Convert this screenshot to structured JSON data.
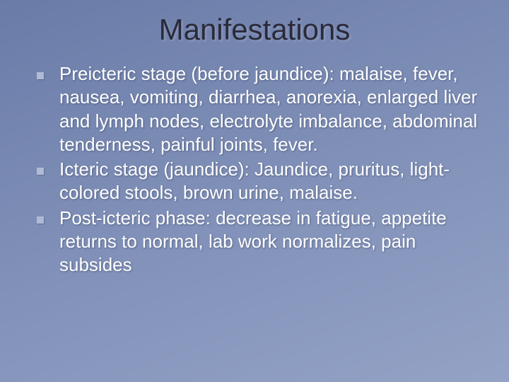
{
  "slide": {
    "title": "Manifestations",
    "title_color": "#2a2a3a",
    "title_fontsize": 42,
    "body_color": "#ffffff",
    "body_fontsize": 26,
    "background_gradient": {
      "angle": 160,
      "stops": [
        "#6a7ba8",
        "#7586b0",
        "#8090b8",
        "#8a99bf",
        "#94a2c5"
      ]
    },
    "bullet_marker_color": "#b0bad5",
    "bullets": [
      "Preicteric stage (before jaundice): malaise, fever, nausea, vomiting, diarrhea, anorexia, enlarged liver and lymph nodes, electrolyte imbalance, abdominal tenderness, painful joints, fever.",
      "Icteric stage (jaundice): Jaundice, pruritus, light-colored stools, brown urine, malaise.",
      "Post-icteric phase: decrease in fatigue, appetite returns to normal, lab work normalizes, pain subsides"
    ]
  }
}
